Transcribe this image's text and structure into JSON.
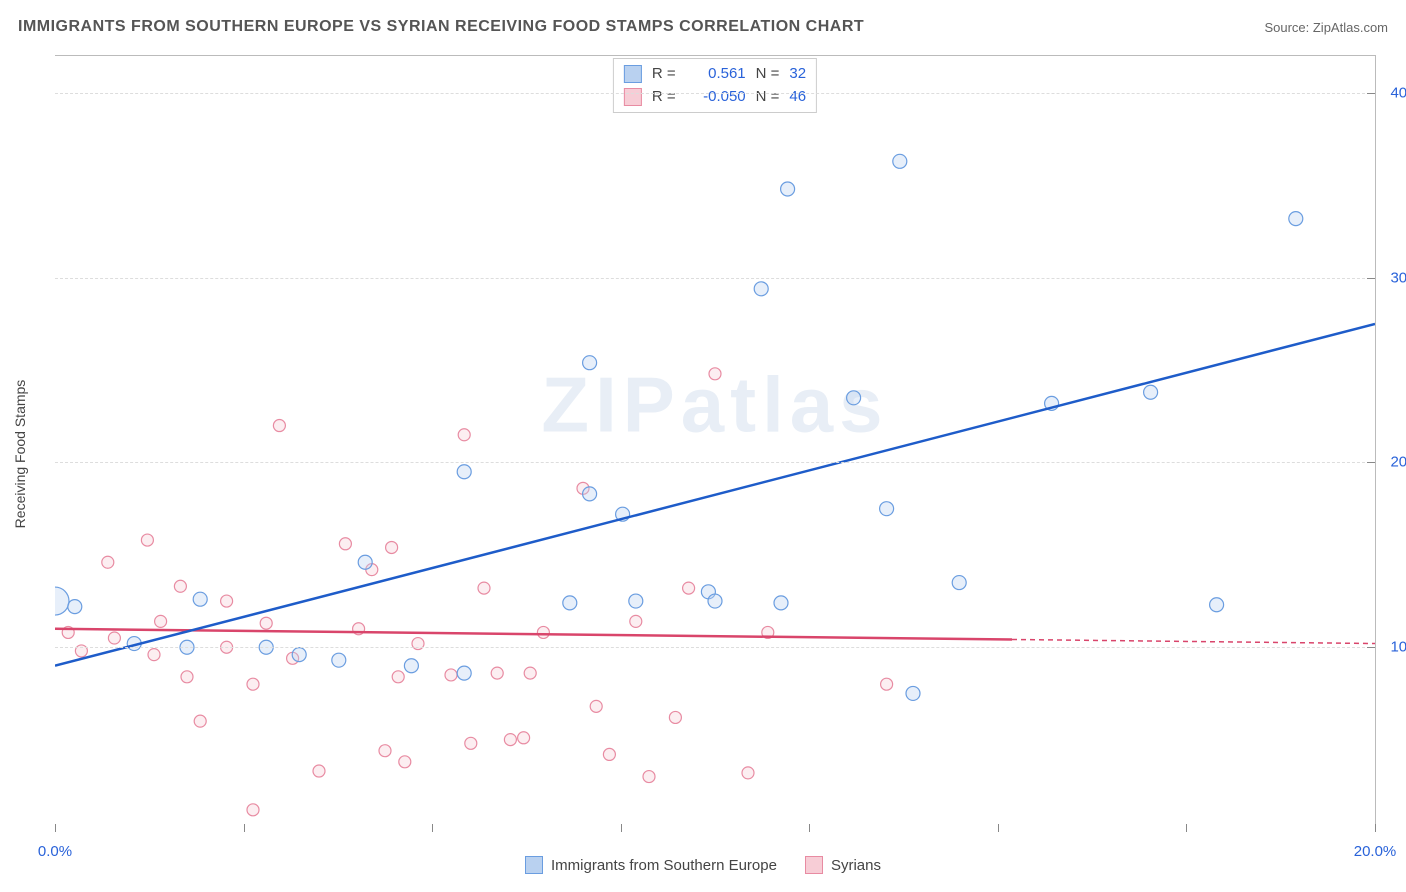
{
  "title": "IMMIGRANTS FROM SOUTHERN EUROPE VS SYRIAN RECEIVING FOOD STAMPS CORRELATION CHART",
  "source": "Source: ZipAtlas.com",
  "watermark": "ZIPatlas",
  "y_axis_label": "Receiving Food Stamps",
  "xlim": [
    0,
    20
  ],
  "ylim": [
    0,
    42
  ],
  "x_ticks": [
    0,
    20
  ],
  "x_tick_labels": [
    "0.0%",
    "20.0%"
  ],
  "x_minor_ticks": [
    2.86,
    5.71,
    8.57,
    11.43,
    14.29,
    17.14
  ],
  "y_ticks": [
    10,
    20,
    30,
    40
  ],
  "y_tick_labels": [
    "10.0%",
    "20.0%",
    "30.0%",
    "40.0%"
  ],
  "grid_color": "#dddddd",
  "background_color": "#ffffff",
  "series": [
    {
      "name": "Immigrants from Southern Europe",
      "color_fill": "#b9d1f0",
      "color_stroke": "#6a9de0",
      "trend_color": "#1e5cc9",
      "R": "0.561",
      "N": "32",
      "trend": {
        "x1": 0,
        "y1": 9.0,
        "x2": 20,
        "y2": 27.5,
        "solid_xmax": 20
      },
      "points": [
        {
          "x": 0.0,
          "y": 12.5,
          "r": 14
        },
        {
          "x": 0.3,
          "y": 12.2,
          "r": 7
        },
        {
          "x": 1.2,
          "y": 10.2,
          "r": 7
        },
        {
          "x": 2.0,
          "y": 10.0,
          "r": 7
        },
        {
          "x": 2.2,
          "y": 12.6,
          "r": 7
        },
        {
          "x": 3.2,
          "y": 10.0,
          "r": 7
        },
        {
          "x": 3.7,
          "y": 9.6,
          "r": 7
        },
        {
          "x": 4.3,
          "y": 9.3,
          "r": 7
        },
        {
          "x": 4.7,
          "y": 14.6,
          "r": 7
        },
        {
          "x": 5.4,
          "y": 9.0,
          "r": 7
        },
        {
          "x": 6.2,
          "y": 8.6,
          "r": 7
        },
        {
          "x": 6.2,
          "y": 19.5,
          "r": 7
        },
        {
          "x": 7.8,
          "y": 12.4,
          "r": 7
        },
        {
          "x": 8.1,
          "y": 18.3,
          "r": 7
        },
        {
          "x": 8.1,
          "y": 25.4,
          "r": 7
        },
        {
          "x": 8.6,
          "y": 17.2,
          "r": 7
        },
        {
          "x": 8.8,
          "y": 12.5,
          "r": 7
        },
        {
          "x": 9.9,
          "y": 13.0,
          "r": 7
        },
        {
          "x": 10.0,
          "y": 12.5,
          "r": 7
        },
        {
          "x": 10.7,
          "y": 29.4,
          "r": 7
        },
        {
          "x": 11.0,
          "y": 12.4,
          "r": 7
        },
        {
          "x": 11.1,
          "y": 34.8,
          "r": 7
        },
        {
          "x": 12.1,
          "y": 23.5,
          "r": 7
        },
        {
          "x": 12.6,
          "y": 17.5,
          "r": 7
        },
        {
          "x": 12.8,
          "y": 36.3,
          "r": 7
        },
        {
          "x": 13.0,
          "y": 7.5,
          "r": 7
        },
        {
          "x": 13.7,
          "y": 13.5,
          "r": 7
        },
        {
          "x": 15.1,
          "y": 23.2,
          "r": 7
        },
        {
          "x": 16.6,
          "y": 23.8,
          "r": 7
        },
        {
          "x": 17.6,
          "y": 12.3,
          "r": 7
        },
        {
          "x": 18.8,
          "y": 33.2,
          "r": 7
        }
      ]
    },
    {
      "name": "Syrians",
      "color_fill": "#f7cdd6",
      "color_stroke": "#e88ba2",
      "trend_color": "#d9456b",
      "R": "-0.050",
      "N": "46",
      "trend": {
        "x1": 0,
        "y1": 11.0,
        "x2": 20,
        "y2": 10.2,
        "solid_xmax": 14.5
      },
      "points": [
        {
          "x": 0.2,
          "y": 10.8,
          "r": 6
        },
        {
          "x": 0.4,
          "y": 9.8,
          "r": 6
        },
        {
          "x": 0.8,
          "y": 14.6,
          "r": 6
        },
        {
          "x": 0.9,
          "y": 10.5,
          "r": 6
        },
        {
          "x": 1.4,
          "y": 15.8,
          "r": 6
        },
        {
          "x": 1.5,
          "y": 9.6,
          "r": 6
        },
        {
          "x": 1.6,
          "y": 11.4,
          "r": 6
        },
        {
          "x": 1.9,
          "y": 13.3,
          "r": 6
        },
        {
          "x": 2.0,
          "y": 8.4,
          "r": 6
        },
        {
          "x": 2.2,
          "y": 6.0,
          "r": 6
        },
        {
          "x": 2.6,
          "y": 10.0,
          "r": 6
        },
        {
          "x": 2.6,
          "y": 12.5,
          "r": 6
        },
        {
          "x": 3.0,
          "y": 8.0,
          "r": 6
        },
        {
          "x": 3.0,
          "y": 1.2,
          "r": 6
        },
        {
          "x": 3.2,
          "y": 11.3,
          "r": 6
        },
        {
          "x": 3.4,
          "y": 22.0,
          "r": 6
        },
        {
          "x": 3.6,
          "y": 9.4,
          "r": 6
        },
        {
          "x": 4.0,
          "y": 3.3,
          "r": 6
        },
        {
          "x": 4.4,
          "y": 15.6,
          "r": 6
        },
        {
          "x": 4.6,
          "y": 11.0,
          "r": 6
        },
        {
          "x": 4.8,
          "y": 14.2,
          "r": 6
        },
        {
          "x": 5.0,
          "y": 4.4,
          "r": 6
        },
        {
          "x": 5.1,
          "y": 15.4,
          "r": 6
        },
        {
          "x": 5.2,
          "y": 8.4,
          "r": 6
        },
        {
          "x": 5.3,
          "y": 3.8,
          "r": 6
        },
        {
          "x": 5.5,
          "y": 10.2,
          "r": 6
        },
        {
          "x": 6.0,
          "y": 8.5,
          "r": 6
        },
        {
          "x": 6.2,
          "y": 21.5,
          "r": 6
        },
        {
          "x": 6.3,
          "y": 4.8,
          "r": 6
        },
        {
          "x": 6.5,
          "y": 13.2,
          "r": 6
        },
        {
          "x": 6.7,
          "y": 8.6,
          "r": 6
        },
        {
          "x": 6.9,
          "y": 5.0,
          "r": 6
        },
        {
          "x": 7.1,
          "y": 5.1,
          "r": 6
        },
        {
          "x": 7.2,
          "y": 8.6,
          "r": 6
        },
        {
          "x": 7.4,
          "y": 10.8,
          "r": 6
        },
        {
          "x": 8.0,
          "y": 18.6,
          "r": 6
        },
        {
          "x": 8.2,
          "y": 6.8,
          "r": 6
        },
        {
          "x": 8.4,
          "y": 4.2,
          "r": 6
        },
        {
          "x": 8.8,
          "y": 11.4,
          "r": 6
        },
        {
          "x": 9.0,
          "y": 3.0,
          "r": 6
        },
        {
          "x": 9.4,
          "y": 6.2,
          "r": 6
        },
        {
          "x": 9.6,
          "y": 13.2,
          "r": 6
        },
        {
          "x": 10.0,
          "y": 24.8,
          "r": 6
        },
        {
          "x": 10.5,
          "y": 3.2,
          "r": 6
        },
        {
          "x": 10.8,
          "y": 10.8,
          "r": 6
        },
        {
          "x": 12.6,
          "y": 8.0,
          "r": 6
        }
      ]
    }
  ],
  "legend_labels": {
    "r_prefix": "R =",
    "n_prefix": "N ="
  }
}
